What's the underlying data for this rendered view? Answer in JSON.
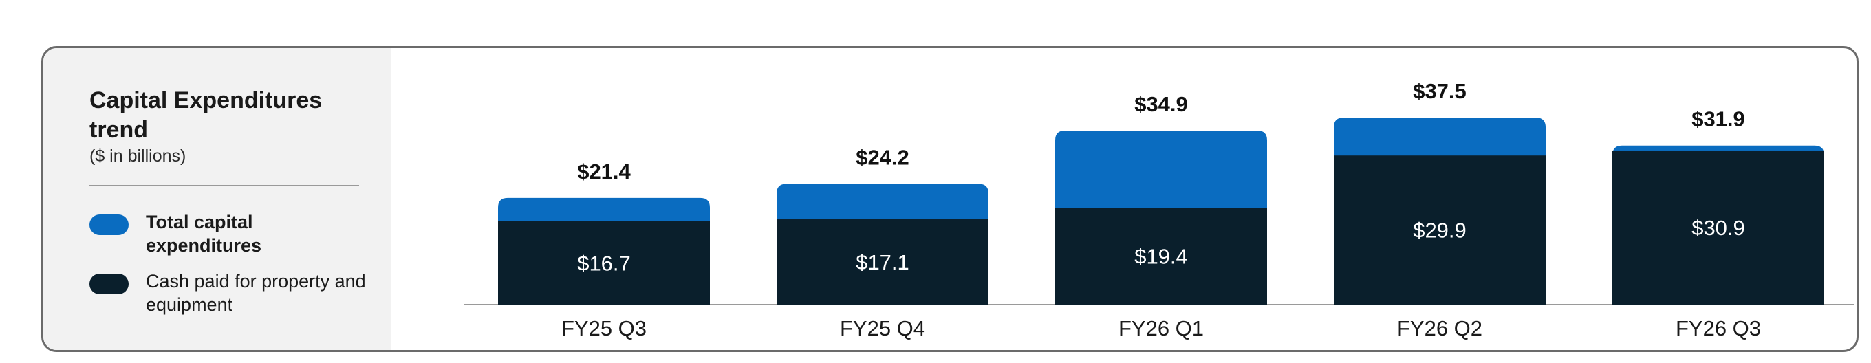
{
  "legend": {
    "title": "Capital Expenditures trend",
    "subtitle": "($ in billions)",
    "items": [
      {
        "label": "Total capital expenditures",
        "color": "#0a6cc0"
      },
      {
        "label": "Cash paid for property and equipment",
        "color": "#0a1f2c"
      }
    ]
  },
  "chart_data": {
    "type": "bar",
    "title": "Capital Expenditures trend",
    "subtitle": "($ in billions)",
    "categories": [
      "FY25 Q3",
      "FY25 Q4",
      "FY26 Q1",
      "FY26 Q2",
      "FY26 Q3"
    ],
    "series": [
      {
        "name": "Total capital expenditures",
        "values": [
          21.4,
          24.2,
          34.9,
          37.5,
          31.9
        ],
        "color": "#0a6cc0",
        "labels": [
          "$21.4",
          "$24.2",
          "$34.9",
          "$37.5",
          "$31.9"
        ]
      },
      {
        "name": "Cash paid for property and equipment",
        "values": [
          16.7,
          17.1,
          19.4,
          29.9,
          30.9
        ],
        "color": "#0a1f2c",
        "labels": [
          "$16.7",
          "$17.1",
          "$19.4",
          "$29.9",
          "$30.9"
        ]
      }
    ],
    "ylim": [
      0,
      40
    ],
    "grid": false,
    "legend_position": "left"
  }
}
